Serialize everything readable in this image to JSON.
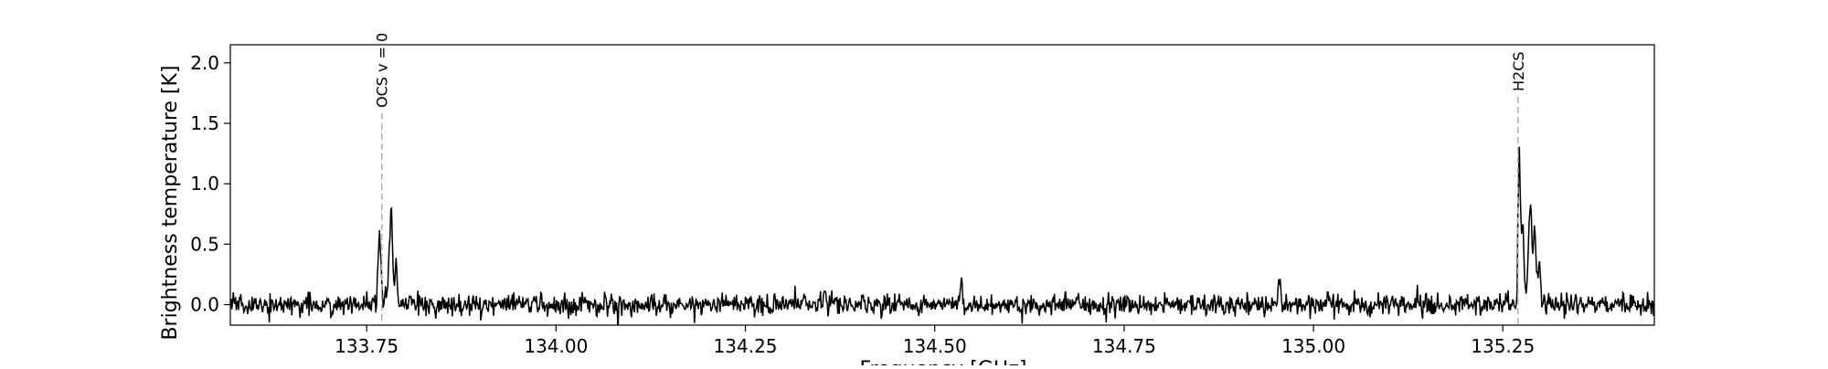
{
  "chart_data": {
    "type": "line",
    "title": "",
    "xlabel": "Frequency [GHz]",
    "ylabel": "Brightness temperature [K]",
    "xlim": [
      133.57,
      135.45
    ],
    "ylim": [
      -0.17,
      2.15
    ],
    "xticks": [
      133.75,
      134.0,
      134.25,
      134.5,
      134.75,
      135.0,
      135.25
    ],
    "xtick_labels": [
      "133.75",
      "134.00",
      "134.25",
      "134.50",
      "134.75",
      "135.00",
      "135.25"
    ],
    "yticks": [
      0.0,
      0.5,
      1.0,
      1.5,
      2.0
    ],
    "ytick_labels": [
      "0.0",
      "0.5",
      "1.0",
      "1.5",
      "2.0"
    ],
    "grid": false,
    "line_color": "#000000",
    "annotation_color": "#b0b0b0",
    "noise_rms": 0.045,
    "noise_seed": 7,
    "n_channels": 1900,
    "annotations": [
      {
        "label": "OCS v = 0",
        "x": 133.77
      },
      {
        "label": "H2CS",
        "x": 135.27
      }
    ],
    "features": [
      {
        "center": 133.767,
        "sigma": 0.0018,
        "amplitude": 0.58
      },
      {
        "center": 133.782,
        "sigma": 0.0022,
        "amplitude": 0.78
      },
      {
        "center": 133.789,
        "sigma": 0.0015,
        "amplitude": 0.32
      },
      {
        "center": 134.355,
        "sigma": 0.0015,
        "amplitude": 0.16
      },
      {
        "center": 134.405,
        "sigma": 0.0015,
        "amplitude": 0.12
      },
      {
        "center": 134.535,
        "sigma": 0.0015,
        "amplitude": 0.14
      },
      {
        "center": 134.955,
        "sigma": 0.0018,
        "amplitude": 0.2
      },
      {
        "center": 135.2715,
        "sigma": 0.0014,
        "amplitude": 1.2
      },
      {
        "center": 135.276,
        "sigma": 0.0022,
        "amplitude": 0.62
      },
      {
        "center": 135.286,
        "sigma": 0.0022,
        "amplitude": 0.82
      },
      {
        "center": 135.292,
        "sigma": 0.0018,
        "amplitude": 0.62
      },
      {
        "center": 135.298,
        "sigma": 0.0016,
        "amplitude": 0.3
      }
    ]
  }
}
